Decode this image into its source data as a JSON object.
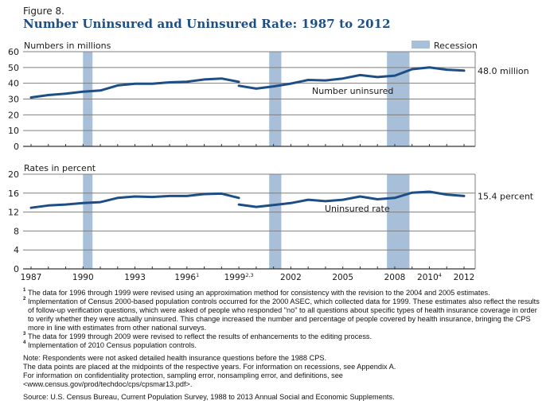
{
  "figure_label": "Figure 8.",
  "title": "Number Uninsured and Uninsured Rate: 1987 to 2012",
  "colors": {
    "title": "#1d4e86",
    "line": "#1d4e86",
    "recession": "#a7bfd9",
    "grid": "#7f7f7f",
    "axis": "#333333"
  },
  "legend": {
    "recession_label": "Recession",
    "position": "top-right"
  },
  "chart_data": [
    {
      "type": "line",
      "title": "Numbers in millions",
      "ylabel": "Numbers in millions",
      "ylim": [
        0,
        60
      ],
      "yticks": [
        0,
        10,
        20,
        30,
        40,
        50,
        60
      ],
      "grid": true,
      "series_label": "Number uninsured",
      "end_label": "48.0 million",
      "segments": [
        {
          "x": [
            1987,
            1988,
            1989,
            1990,
            1991,
            1992,
            1993,
            1994,
            1995,
            1996,
            1997,
            1998,
            1999
          ],
          "values": [
            31.0,
            32.5,
            33.4,
            34.7,
            35.4,
            38.6,
            39.7,
            39.7,
            40.6,
            41.0,
            42.4,
            43.0,
            40.9
          ]
        },
        {
          "x": [
            1999,
            2000,
            2001,
            2002,
            2003,
            2004,
            2005,
            2006,
            2007,
            2008,
            2009,
            2010,
            2011,
            2012
          ],
          "values": [
            38.4,
            36.6,
            38.0,
            39.8,
            42.1,
            41.8,
            43.0,
            45.2,
            43.9,
            44.8,
            48.9,
            50.0,
            48.6,
            48.0
          ]
        }
      ]
    },
    {
      "type": "line",
      "title": "Rates in percent",
      "ylabel": "Rates in percent",
      "ylim": [
        0,
        20
      ],
      "yticks": [
        0,
        4,
        8,
        12,
        16,
        20
      ],
      "grid": true,
      "series_label": "Uninsured rate",
      "end_label": "15.4 percent",
      "segments": [
        {
          "x": [
            1987,
            1988,
            1989,
            1990,
            1991,
            1992,
            1993,
            1994,
            1995,
            1996,
            1997,
            1998,
            1999
          ],
          "values": [
            12.9,
            13.4,
            13.6,
            13.9,
            14.1,
            15.0,
            15.3,
            15.2,
            15.4,
            15.4,
            15.8,
            15.9,
            15.0
          ]
        },
        {
          "x": [
            1999,
            2000,
            2001,
            2002,
            2003,
            2004,
            2005,
            2006,
            2007,
            2008,
            2009,
            2010,
            2011,
            2012
          ],
          "values": [
            13.6,
            13.1,
            13.5,
            13.9,
            14.6,
            14.3,
            14.6,
            15.3,
            14.7,
            15.0,
            16.1,
            16.3,
            15.7,
            15.4
          ]
        }
      ]
    }
  ],
  "xaxis": {
    "range": [
      1987,
      2012
    ],
    "tick_labels": [
      {
        "year": 1987,
        "label": "1987",
        "sup": ""
      },
      {
        "year": 1990,
        "label": "1990",
        "sup": ""
      },
      {
        "year": 1993,
        "label": "1993",
        "sup": ""
      },
      {
        "year": 1996,
        "label": "1996",
        "sup": "1"
      },
      {
        "year": 1999,
        "label": "1999",
        "sup": "2,3"
      },
      {
        "year": 2002,
        "label": "2002",
        "sup": ""
      },
      {
        "year": 2005,
        "label": "2005",
        "sup": ""
      },
      {
        "year": 2008,
        "label": "2008",
        "sup": ""
      },
      {
        "year": 2010,
        "label": "2010",
        "sup": "4"
      },
      {
        "year": 2012,
        "label": "2012",
        "sup": ""
      }
    ]
  },
  "recessions": [
    {
      "start": 1990.0,
      "end": 1990.55
    },
    {
      "start": 2000.75,
      "end": 2001.45
    },
    {
      "start": 2007.55,
      "end": 2008.85
    }
  ],
  "footnotes": [
    {
      "mark": "1",
      "text": "The data for 1996 through 1999 were revised using an approximation method for consistency with the revision to the 2004 and 2005 estimates."
    },
    {
      "mark": "2",
      "text": "Implementation of Census 2000-based population controls occurred for the 2000 ASEC, which collected data for 1999. These estimates also reflect the results of follow-up verification questions, which were asked of people who responded \"no\" to all questions about specific types of health insurance coverage in order to verify whether they were actually uninsured. This change increased the number and percentage of people covered by health insurance, bringing the CPS more in line with estimates from other national surveys."
    },
    {
      "mark": "3",
      "text": "The data for 1999 through 2009 were revised to reflect the results of enhancements to the editing process."
    },
    {
      "mark": "4",
      "text": "Implementation of 2010 Census population controls."
    }
  ],
  "notes": [
    "Note: Respondents were not asked detailed health insurance questions before the 1988 CPS.",
    "The data points are placed at the midpoints of the respective years. For information on recessions, see Appendix A.",
    "For information on confidentiality protection, sampling error, nonsampling error, and definitions, see",
    "<www.census.gov/prod/techdoc/cps/cpsmar13.pdf>."
  ],
  "source": "Source: U.S. Census Bureau, Current Population Survey, 1988 to 2013 Annual Social and Economic Supplements."
}
